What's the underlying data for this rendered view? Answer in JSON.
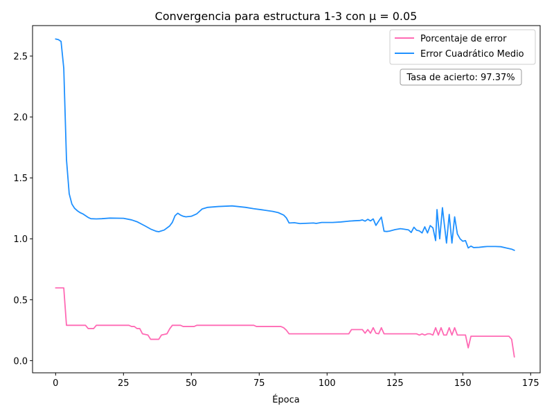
{
  "chart_data": {
    "type": "line",
    "title": "Convergencia para estructura 1-3 con μ = 0.05",
    "xlabel": "Época",
    "ylabel": "",
    "xlim": [
      -8.5,
      178.5
    ],
    "ylim": [
      -0.1,
      2.75
    ],
    "xticks": [
      0,
      25,
      50,
      75,
      100,
      125,
      150,
      175
    ],
    "yticks": [
      0.0,
      0.5,
      1.0,
      1.5,
      2.0,
      2.5
    ],
    "xtick_labels": [
      "0",
      "25",
      "50",
      "75",
      "100",
      "125",
      "150",
      "175"
    ],
    "ytick_labels": [
      "0.0",
      "0.5",
      "1.0",
      "1.5",
      "2.0",
      "2.5"
    ],
    "grid": false,
    "legend_position": "top-right",
    "annotation": "Tasa de acierto: 97.37%",
    "series": [
      {
        "name": "Porcentaje de error",
        "color": "#ff69b4",
        "points": [
          [
            0,
            0.597
          ],
          [
            3,
            0.597
          ],
          [
            4,
            0.29
          ],
          [
            11,
            0.29
          ],
          [
            12,
            0.263
          ],
          [
            14,
            0.263
          ],
          [
            15,
            0.29
          ],
          [
            27,
            0.29
          ],
          [
            28,
            0.28
          ],
          [
            29,
            0.28
          ],
          [
            30,
            0.263
          ],
          [
            31,
            0.263
          ],
          [
            32,
            0.22
          ],
          [
            34,
            0.21
          ],
          [
            35,
            0.175
          ],
          [
            38,
            0.175
          ],
          [
            39,
            0.21
          ],
          [
            41,
            0.22
          ],
          [
            42,
            0.26
          ],
          [
            43,
            0.29
          ],
          [
            46,
            0.29
          ],
          [
            47,
            0.28
          ],
          [
            51,
            0.28
          ],
          [
            52,
            0.29
          ],
          [
            73,
            0.29
          ],
          [
            74,
            0.28
          ],
          [
            83,
            0.28
          ],
          [
            84,
            0.27
          ],
          [
            85,
            0.25
          ],
          [
            86,
            0.22
          ],
          [
            108,
            0.22
          ],
          [
            109,
            0.255
          ],
          [
            113,
            0.255
          ],
          [
            114,
            0.225
          ],
          [
            115,
            0.255
          ],
          [
            116,
            0.225
          ],
          [
            117,
            0.27
          ],
          [
            118,
            0.225
          ],
          [
            119,
            0.22
          ],
          [
            120,
            0.27
          ],
          [
            121,
            0.22
          ],
          [
            133,
            0.22
          ],
          [
            134,
            0.21
          ],
          [
            135,
            0.22
          ],
          [
            136,
            0.21
          ],
          [
            137,
            0.22
          ],
          [
            138,
            0.22
          ],
          [
            139,
            0.21
          ],
          [
            140,
            0.27
          ],
          [
            141,
            0.21
          ],
          [
            142,
            0.27
          ],
          [
            143,
            0.21
          ],
          [
            144,
            0.21
          ],
          [
            145,
            0.27
          ],
          [
            146,
            0.21
          ],
          [
            147,
            0.27
          ],
          [
            148,
            0.21
          ],
          [
            150,
            0.21
          ],
          [
            151,
            0.21
          ],
          [
            152,
            0.105
          ],
          [
            153,
            0.2
          ],
          [
            167,
            0.2
          ],
          [
            168,
            0.175
          ],
          [
            169,
            0.03
          ]
        ]
      },
      {
        "name": "Error Cuadrático Medio",
        "color": "#1e90ff",
        "points": [
          [
            0,
            2.64
          ],
          [
            1,
            2.635
          ],
          [
            2,
            2.62
          ],
          [
            3,
            2.4
          ],
          [
            4,
            1.65
          ],
          [
            5,
            1.37
          ],
          [
            6,
            1.285
          ],
          [
            7,
            1.25
          ],
          [
            8,
            1.23
          ],
          [
            9,
            1.215
          ],
          [
            10,
            1.205
          ],
          [
            11,
            1.19
          ],
          [
            12,
            1.175
          ],
          [
            13,
            1.165
          ],
          [
            15,
            1.163
          ],
          [
            17,
            1.165
          ],
          [
            20,
            1.17
          ],
          [
            25,
            1.168
          ],
          [
            28,
            1.155
          ],
          [
            30,
            1.14
          ],
          [
            33,
            1.105
          ],
          [
            35,
            1.08
          ],
          [
            37,
            1.062
          ],
          [
            38,
            1.058
          ],
          [
            40,
            1.072
          ],
          [
            42,
            1.105
          ],
          [
            43,
            1.135
          ],
          [
            44,
            1.19
          ],
          [
            45,
            1.21
          ],
          [
            46,
            1.195
          ],
          [
            47,
            1.185
          ],
          [
            48,
            1.18
          ],
          [
            50,
            1.185
          ],
          [
            52,
            1.205
          ],
          [
            54,
            1.245
          ],
          [
            56,
            1.258
          ],
          [
            60,
            1.265
          ],
          [
            65,
            1.27
          ],
          [
            70,
            1.258
          ],
          [
            73,
            1.247
          ],
          [
            76,
            1.238
          ],
          [
            80,
            1.225
          ],
          [
            82,
            1.215
          ],
          [
            84,
            1.195
          ],
          [
            85,
            1.172
          ],
          [
            86,
            1.13
          ],
          [
            88,
            1.132
          ],
          [
            90,
            1.125
          ],
          [
            95,
            1.13
          ],
          [
            96,
            1.126
          ],
          [
            98,
            1.134
          ],
          [
            102,
            1.134
          ],
          [
            105,
            1.138
          ],
          [
            108,
            1.145
          ],
          [
            110,
            1.148
          ],
          [
            112,
            1.15
          ],
          [
            113,
            1.155
          ],
          [
            114,
            1.145
          ],
          [
            115,
            1.16
          ],
          [
            116,
            1.147
          ],
          [
            117,
            1.163
          ],
          [
            118,
            1.11
          ],
          [
            119,
            1.145
          ],
          [
            120,
            1.178
          ],
          [
            121,
            1.062
          ],
          [
            122,
            1.06
          ],
          [
            123,
            1.063
          ],
          [
            125,
            1.075
          ],
          [
            127,
            1.083
          ],
          [
            128,
            1.08
          ],
          [
            130,
            1.073
          ],
          [
            131,
            1.052
          ],
          [
            132,
            1.095
          ],
          [
            133,
            1.07
          ],
          [
            134,
            1.065
          ],
          [
            135,
            1.048
          ],
          [
            136,
            1.098
          ],
          [
            137,
            1.048
          ],
          [
            138,
            1.108
          ],
          [
            139,
            1.09
          ],
          [
            140,
            0.985
          ],
          [
            140.5,
            1.24
          ],
          [
            141.5,
            1.0
          ],
          [
            142.5,
            1.255
          ],
          [
            144,
            0.965
          ],
          [
            145,
            1.2
          ],
          [
            146,
            0.965
          ],
          [
            147,
            1.18
          ],
          [
            148,
            1.04
          ],
          [
            149,
            1.0
          ],
          [
            150,
            0.98
          ],
          [
            151,
            0.985
          ],
          [
            152,
            0.925
          ],
          [
            153,
            0.94
          ],
          [
            154,
            0.928
          ],
          [
            156,
            0.93
          ],
          [
            158,
            0.935
          ],
          [
            159,
            0.937
          ],
          [
            162,
            0.937
          ],
          [
            164,
            0.935
          ],
          [
            166,
            0.925
          ],
          [
            168,
            0.915
          ],
          [
            169,
            0.905
          ]
        ]
      }
    ]
  }
}
